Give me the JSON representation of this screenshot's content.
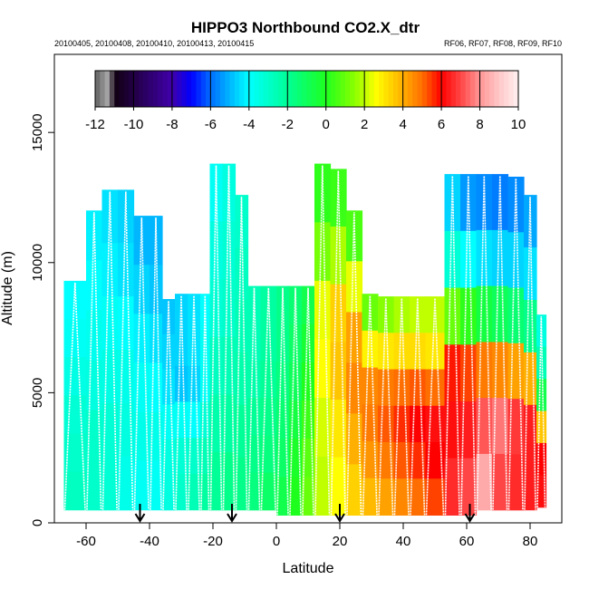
{
  "chart_data": {
    "type": "heatmap",
    "title": "HIPPO3 Northbound CO2.X_dtr",
    "subtitle_left": "20100405, 20100408, 20100410, 20100413, 20100415",
    "subtitle_right": "RF06, RF07, RF08, RF09, RF10",
    "xlabel": "Latitude",
    "ylabel": "Altitude (m)",
    "xlim": [
      -70,
      90
    ],
    "ylim": [
      0,
      18000
    ],
    "x_ticks": [
      -60,
      -40,
      -20,
      0,
      20,
      40,
      60,
      80
    ],
    "y_ticks": [
      0,
      5000,
      10000,
      15000
    ],
    "colorbar": {
      "min": -12,
      "max": 10,
      "tick_values": [
        -12,
        -10,
        -8,
        -6,
        -4,
        -2,
        0,
        2,
        4,
        6,
        8,
        10
      ],
      "tick_labels": [
        "-12",
        "-10",
        "-8",
        "-6",
        "-4",
        "-2",
        "0",
        "2",
        "4",
        "6",
        "8",
        "10"
      ]
    },
    "arrow_latitudes": [
      -43,
      -14,
      20,
      61
    ],
    "columns": [
      {
        "x0": -67,
        "x1": -60,
        "top": 9300,
        "bot": 500,
        "vals": [
          -4.0,
          -3.8,
          -3.5,
          -3.2,
          -3.0,
          -2.8
        ]
      },
      {
        "x0": -60,
        "x1": -55,
        "top": 12000,
        "bot": 500,
        "vals": [
          -4.2,
          -4.0,
          -3.7,
          -3.4,
          -3.0,
          -3.0
        ]
      },
      {
        "x0": -55,
        "x1": -50,
        "top": 12800,
        "bot": 500,
        "vals": [
          -4.4,
          -4.2,
          -3.8,
          -3.5,
          -3.2,
          -3.2
        ]
      },
      {
        "x0": -50,
        "x1": -45,
        "top": 12800,
        "bot": 500,
        "vals": [
          -4.6,
          -4.4,
          -4.0,
          -3.6,
          -3.4,
          -3.6
        ]
      },
      {
        "x0": -45,
        "x1": -40,
        "top": 11800,
        "bot": 500,
        "vals": [
          -5.0,
          -4.6,
          -4.2,
          -3.8,
          -3.6,
          -3.8
        ]
      },
      {
        "x0": -40,
        "x1": -36,
        "top": 11800,
        "bot": 500,
        "vals": [
          -5.0,
          -4.8,
          -4.4,
          -4.0,
          -3.6,
          -3.8
        ]
      },
      {
        "x0": -36,
        "x1": -32,
        "top": 8600,
        "bot": 500,
        "vals": [
          -4.8,
          -4.6,
          -4.4,
          -3.8,
          -3.4,
          -3.4
        ]
      },
      {
        "x0": -32,
        "x1": -28,
        "top": 8800,
        "bot": 500,
        "vals": [
          -4.6,
          -4.6,
          -4.8,
          -3.8,
          -3.2,
          -3.0
        ]
      },
      {
        "x0": -28,
        "x1": -24,
        "top": 8800,
        "bot": 500,
        "vals": [
          -4.4,
          -4.4,
          -4.6,
          -4.0,
          -3.0,
          -2.6
        ]
      },
      {
        "x0": -24,
        "x1": -21,
        "top": 8800,
        "bot": 500,
        "vals": [
          -4.0,
          -3.8,
          -3.8,
          -3.2,
          -2.6,
          -2.2
        ]
      },
      {
        "x0": -21,
        "x1": -17,
        "top": 13800,
        "bot": 500,
        "vals": [
          -3.8,
          -3.4,
          -3.2,
          -2.8,
          -2.4,
          -2.0
        ]
      },
      {
        "x0": -17,
        "x1": -13,
        "top": 13800,
        "bot": 500,
        "vals": [
          -3.4,
          -3.2,
          -3.0,
          -2.6,
          -2.2,
          -1.8
        ]
      },
      {
        "x0": -13,
        "x1": -9,
        "top": 12600,
        "bot": 500,
        "vals": [
          -3.0,
          -2.8,
          -2.6,
          -2.4,
          -2.0,
          -1.8
        ]
      },
      {
        "x0": -9,
        "x1": -5,
        "top": 9100,
        "bot": 500,
        "vals": [
          -2.6,
          -2.6,
          -2.4,
          -2.0,
          -1.8,
          -1.6
        ]
      },
      {
        "x0": -5,
        "x1": 0,
        "top": 9100,
        "bot": 500,
        "vals": [
          -2.2,
          -2.2,
          -2.0,
          -1.8,
          -1.6,
          -1.2
        ]
      },
      {
        "x0": 0,
        "x1": 4,
        "top": 9100,
        "bot": 300,
        "vals": [
          -1.8,
          -1.8,
          -1.6,
          -1.4,
          -1.2,
          -0.8
        ]
      },
      {
        "x0": 4,
        "x1": 8,
        "top": 9100,
        "bot": 300,
        "vals": [
          -1.4,
          -1.2,
          -1.0,
          -0.6,
          -0.2,
          0.0
        ]
      },
      {
        "x0": 8,
        "x1": 12,
        "top": 9100,
        "bot": 300,
        "vals": [
          -0.8,
          -0.4,
          0.0,
          0.4,
          0.8,
          1.0
        ]
      },
      {
        "x0": 12,
        "x1": 17,
        "top": 13800,
        "bot": 300,
        "vals": [
          0.2,
          1.2,
          2.4,
          2.6,
          2.2,
          2.0
        ]
      },
      {
        "x0": 17,
        "x1": 22,
        "top": 13600,
        "bot": 300,
        "vals": [
          0.4,
          1.8,
          3.4,
          3.6,
          3.0,
          2.6
        ]
      },
      {
        "x0": 22,
        "x1": 27,
        "top": 12000,
        "bot": 300,
        "vals": [
          0.6,
          2.4,
          4.2,
          4.6,
          4.0,
          3.4
        ]
      },
      {
        "x0": 27,
        "x1": 32,
        "top": 8800,
        "bot": 300,
        "vals": [
          1.0,
          2.8,
          4.6,
          4.8,
          4.4,
          3.8
        ]
      },
      {
        "x0": 32,
        "x1": 37,
        "top": 8700,
        "bot": 300,
        "vals": [
          1.4,
          3.0,
          4.8,
          5.2,
          4.8,
          4.2
        ]
      },
      {
        "x0": 37,
        "x1": 42,
        "top": 8700,
        "bot": 300,
        "vals": [
          1.8,
          3.2,
          5.0,
          5.6,
          5.2,
          4.6
        ]
      },
      {
        "x0": 42,
        "x1": 47,
        "top": 8700,
        "bot": 300,
        "vals": [
          2.0,
          3.2,
          5.2,
          6.0,
          5.6,
          5.0
        ]
      },
      {
        "x0": 47,
        "x1": 53,
        "top": 8700,
        "bot": 300,
        "vals": [
          2.0,
          3.0,
          5.0,
          6.2,
          6.0,
          5.4
        ]
      },
      {
        "x0": 53,
        "x1": 58,
        "top": 13400,
        "bot": 300,
        "vals": [
          -4.6,
          -3.2,
          1.0,
          5.8,
          6.2,
          6.6
        ]
      },
      {
        "x0": 58,
        "x1": 63,
        "top": 13400,
        "bot": 300,
        "vals": [
          -5.4,
          -4.0,
          0.2,
          5.4,
          6.4,
          7.0
        ]
      },
      {
        "x0": 63,
        "x1": 68,
        "top": 13400,
        "bot": 500,
        "vals": [
          -5.6,
          -4.4,
          -0.6,
          4.8,
          7.2,
          8.4
        ]
      },
      {
        "x0": 68,
        "x1": 73,
        "top": 13400,
        "bot": 500,
        "vals": [
          -5.8,
          -4.6,
          -1.0,
          4.6,
          7.6,
          7.0
        ]
      },
      {
        "x0": 73,
        "x1": 78,
        "top": 13300,
        "bot": 500,
        "vals": [
          -5.6,
          -4.6,
          -1.4,
          4.2,
          6.8,
          6.6
        ]
      },
      {
        "x0": 78,
        "x1": 82,
        "top": 12600,
        "bot": 500,
        "vals": [
          -5.2,
          -4.4,
          -1.8,
          4.0,
          6.4,
          6.4
        ]
      },
      {
        "x0": 82,
        "x1": 85,
        "top": 8000,
        "bot": 600,
        "vals": [
          -3.4,
          -2.6,
          -0.8,
          3.6,
          6.0,
          6.2
        ]
      }
    ]
  }
}
